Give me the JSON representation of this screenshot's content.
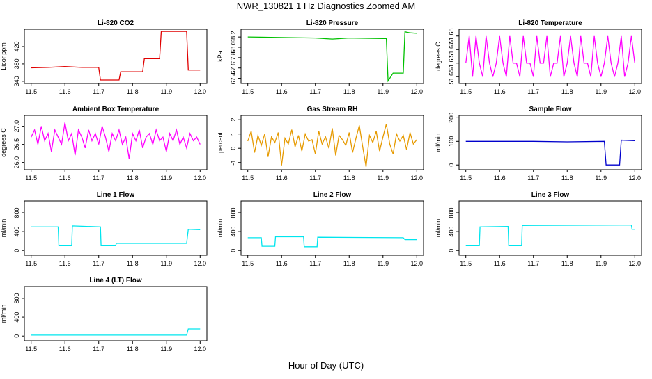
{
  "title": "NWR_130821  1 Hz Diagnostics Zoomed AM",
  "xlabel": "Hour of Day (UTC)",
  "chart_data": [
    {
      "type": "line",
      "title": "Li-820 CO2",
      "ylabel": "Licor ppm",
      "color": "#e00000",
      "x": [
        11.5,
        11.55,
        11.6,
        11.65,
        11.7,
        11.705,
        11.76,
        11.765,
        11.83,
        11.835,
        11.88,
        11.885,
        11.96,
        11.965,
        12.0
      ],
      "values": [
        371,
        372,
        374,
        372,
        372,
        343,
        343,
        362,
        362,
        392,
        392,
        455,
        455,
        366,
        366
      ],
      "xlim": [
        11.48,
        12.02
      ],
      "xticks": [
        11.5,
        11.6,
        11.7,
        11.8,
        11.9,
        {
          "value": 12,
          "label": "12.0"
        }
      ],
      "ylim": [
        335,
        460
      ],
      "yticks": [
        340,
        380,
        420
      ]
    },
    {
      "type": "line",
      "title": "Li-820 Pressure",
      "ylabel": "kPa",
      "color": "#00c000",
      "x": [
        11.5,
        11.6,
        11.7,
        11.75,
        11.8,
        11.9,
        11.91,
        11.915,
        11.93,
        11.96,
        11.965,
        11.98,
        12.0
      ],
      "values": [
        68.2,
        68.19,
        68.18,
        68.16,
        68.18,
        68.17,
        68.17,
        67.35,
        67.5,
        67.5,
        68.3,
        68.28,
        68.27
      ],
      "xlim": [
        11.48,
        12.02
      ],
      "xticks": [
        11.5,
        11.6,
        11.7,
        11.8,
        11.9,
        {
          "value": 12,
          "label": "12.0"
        }
      ],
      "ylim": [
        67.3,
        68.35
      ],
      "yticks": [
        67.4,
        67.6,
        67.8,
        {
          "value": 68,
          "label": "68.0"
        },
        68.2
      ]
    },
    {
      "type": "line",
      "title": "Li-820 Temperature",
      "ylabel": "degrees C",
      "color": "#ff00ff",
      "x": [
        11.5,
        11.51,
        11.52,
        11.53,
        11.54,
        11.55,
        11.56,
        11.57,
        11.58,
        11.59,
        11.6,
        11.61,
        11.62,
        11.63,
        11.64,
        11.65,
        11.66,
        11.67,
        11.68,
        11.69,
        11.7,
        11.71,
        11.72,
        11.73,
        11.74,
        11.75,
        11.76,
        11.77,
        11.78,
        11.79,
        11.8,
        11.81,
        11.82,
        11.83,
        11.84,
        11.85,
        11.86,
        11.87,
        11.88,
        11.89,
        11.9,
        11.91,
        11.92,
        11.93,
        11.94,
        11.95,
        11.96,
        11.97,
        11.98,
        11.99,
        12.0
      ],
      "values": [
        51.66,
        51.68,
        51.65,
        51.68,
        51.66,
        51.65,
        51.68,
        51.66,
        51.65,
        51.66,
        51.68,
        51.66,
        51.65,
        51.68,
        51.66,
        51.66,
        51.65,
        51.68,
        51.66,
        51.66,
        51.65,
        51.68,
        51.66,
        51.66,
        51.68,
        51.65,
        51.66,
        51.66,
        51.68,
        51.65,
        51.66,
        51.68,
        51.66,
        51.65,
        51.68,
        51.66,
        51.66,
        51.65,
        51.68,
        51.66,
        51.65,
        51.66,
        51.68,
        51.66,
        51.65,
        51.66,
        51.68,
        51.65,
        51.66,
        51.68,
        51.66
      ],
      "xlim": [
        11.48,
        12.02
      ],
      "xticks": [
        11.5,
        11.6,
        11.7,
        11.8,
        11.9,
        {
          "value": 12,
          "label": "12.0"
        }
      ],
      "ylim": [
        51.645,
        51.685
      ],
      "yticks": [
        51.65,
        51.66,
        51.67,
        51.68
      ]
    },
    {
      "type": "line",
      "title": "Ambient Box Temperature",
      "ylabel": "degrees C",
      "color": "#ff00ff",
      "x": [
        11.5,
        11.51,
        11.52,
        11.53,
        11.54,
        11.55,
        11.56,
        11.57,
        11.58,
        11.59,
        11.6,
        11.61,
        11.62,
        11.63,
        11.64,
        11.65,
        11.66,
        11.67,
        11.68,
        11.69,
        11.7,
        11.71,
        11.72,
        11.73,
        11.74,
        11.75,
        11.76,
        11.77,
        11.78,
        11.79,
        11.8,
        11.81,
        11.82,
        11.83,
        11.84,
        11.85,
        11.86,
        11.87,
        11.88,
        11.89,
        11.9,
        11.91,
        11.92,
        11.93,
        11.94,
        11.95,
        11.96,
        11.97,
        11.98,
        11.99,
        12.0
      ],
      "values": [
        26.7,
        26.9,
        26.5,
        27.0,
        26.6,
        26.8,
        26.3,
        26.9,
        26.7,
        26.5,
        27.1,
        26.6,
        26.8,
        26.2,
        26.9,
        26.7,
        26.4,
        26.9,
        26.6,
        26.8,
        26.5,
        27.0,
        26.7,
        26.3,
        26.8,
        26.6,
        26.9,
        26.5,
        26.7,
        26.1,
        26.8,
        26.6,
        26.9,
        26.4,
        26.7,
        26.8,
        26.5,
        26.9,
        26.6,
        26.7,
        26.3,
        26.8,
        26.6,
        26.9,
        26.5,
        26.7,
        26.4,
        26.8,
        26.6,
        26.7,
        26.5
      ],
      "xlim": [
        11.48,
        12.02
      ],
      "xticks": [
        11.5,
        11.6,
        11.7,
        11.8,
        11.9,
        {
          "value": 12,
          "label": "12.0"
        }
      ],
      "ylim": [
        25.8,
        27.3
      ],
      "yticks": [
        {
          "value": 26,
          "label": "26.0"
        },
        26.5,
        {
          "value": 27,
          "label": "27.0"
        }
      ]
    },
    {
      "type": "line",
      "title": "Gas Stream RH",
      "ylabel": "percent",
      "color": "#e69a00",
      "x": [
        11.5,
        11.51,
        11.52,
        11.53,
        11.54,
        11.55,
        11.56,
        11.57,
        11.58,
        11.59,
        11.6,
        11.61,
        11.62,
        11.63,
        11.64,
        11.65,
        11.66,
        11.67,
        11.68,
        11.69,
        11.7,
        11.71,
        11.72,
        11.73,
        11.74,
        11.75,
        11.76,
        11.77,
        11.78,
        11.79,
        11.8,
        11.81,
        11.82,
        11.83,
        11.84,
        11.85,
        11.86,
        11.87,
        11.88,
        11.89,
        11.9,
        11.91,
        11.92,
        11.93,
        11.94,
        11.95,
        11.96,
        11.97,
        11.98,
        11.99,
        12.0
      ],
      "values": [
        0.5,
        1.2,
        -0.3,
        0.9,
        0.2,
        1.0,
        -0.6,
        0.8,
        0.4,
        1.1,
        -1.2,
        0.7,
        0.3,
        1.3,
        0.1,
        0.9,
        -0.2,
        1.0,
        0.5,
        0.6,
        -0.4,
        1.2,
        0.3,
        0.8,
        0.0,
        1.4,
        -0.5,
        0.9,
        0.6,
        0.2,
        1.1,
        -0.3,
        0.7,
        1.6,
        0.1,
        -1.3,
        0.9,
        0.4,
        1.2,
        -0.2,
        0.8,
        1.7,
        0.3,
        -0.4,
        1.0,
        0.5,
        0.9,
        -0.1,
        1.1,
        0.3,
        0.6
      ],
      "xlim": [
        11.48,
        12.02
      ],
      "xticks": [
        11.5,
        11.6,
        11.7,
        11.8,
        11.9,
        {
          "value": 12,
          "label": "12.0"
        }
      ],
      "ylim": [
        -1.5,
        2.3
      ],
      "yticks": [
        -1,
        0,
        1,
        2
      ]
    },
    {
      "type": "line",
      "title": "Sample Flow",
      "ylabel": "ml/min",
      "color": "#0000cc",
      "x": [
        11.5,
        11.7,
        11.8,
        11.91,
        11.915,
        11.955,
        11.96,
        12.0
      ],
      "values": [
        100,
        100,
        98,
        100,
        0,
        0,
        105,
        103
      ],
      "xlim": [
        11.48,
        12.02
      ],
      "xticks": [
        11.5,
        11.6,
        11.7,
        11.8,
        11.9,
        {
          "value": 12,
          "label": "12.0"
        }
      ],
      "ylim": [
        -20,
        210
      ],
      "yticks": [
        0,
        100,
        200
      ]
    },
    {
      "type": "line",
      "title": "Line 1 Flow",
      "ylabel": "ml/min",
      "color": "#00e5ee",
      "x": [
        11.5,
        11.58,
        11.582,
        11.62,
        11.622,
        11.705,
        11.707,
        11.75,
        11.752,
        11.96,
        11.965,
        12.0
      ],
      "values": [
        500,
        500,
        100,
        100,
        520,
        500,
        100,
        100,
        150,
        150,
        450,
        440
      ],
      "xlim": [
        11.48,
        12.02
      ],
      "xticks": [
        11.5,
        11.6,
        11.7,
        11.8,
        11.9,
        {
          "value": 12,
          "label": "12.0"
        }
      ],
      "ylim": [
        -100,
        1050
      ],
      "yticks": [
        0,
        400,
        800
      ]
    },
    {
      "type": "line",
      "title": "Line 2 Flow",
      "ylabel": "ml/min",
      "color": "#00e5ee",
      "x": [
        11.5,
        11.54,
        11.542,
        11.58,
        11.582,
        11.665,
        11.667,
        11.705,
        11.707,
        11.96,
        11.965,
        12.0
      ],
      "values": [
        270,
        270,
        90,
        90,
        290,
        290,
        80,
        80,
        280,
        270,
        230,
        230
      ],
      "xlim": [
        11.48,
        12.02
      ],
      "xticks": [
        11.5,
        11.6,
        11.7,
        11.8,
        11.9,
        {
          "value": 12,
          "label": "12.0"
        }
      ],
      "ylim": [
        -100,
        1050
      ],
      "yticks": [
        0,
        400,
        800
      ]
    },
    {
      "type": "line",
      "title": "Line 3 Flow",
      "ylabel": "ml/min",
      "color": "#00e5ee",
      "x": [
        11.5,
        11.54,
        11.542,
        11.625,
        11.627,
        11.665,
        11.667,
        11.99,
        11.992,
        12.0
      ],
      "values": [
        100,
        100,
        500,
        510,
        100,
        100,
        530,
        540,
        450,
        450
      ],
      "xlim": [
        11.48,
        12.02
      ],
      "xticks": [
        11.5,
        11.6,
        11.7,
        11.8,
        11.9,
        {
          "value": 12,
          "label": "12.0"
        }
      ],
      "ylim": [
        -100,
        1050
      ],
      "yticks": [
        0,
        400,
        800
      ]
    },
    {
      "type": "line",
      "title": "Line 4 (LT) Flow",
      "ylabel": "ml/min",
      "color": "#00e5ee",
      "x": [
        11.5,
        11.96,
        11.965,
        12.0
      ],
      "values": [
        20,
        20,
        150,
        150
      ],
      "xlim": [
        11.48,
        12.02
      ],
      "xticks": [
        11.5,
        11.6,
        11.7,
        11.8,
        11.9,
        {
          "value": 12,
          "label": "12.0"
        }
      ],
      "ylim": [
        -100,
        1050
      ],
      "yticks": [
        0,
        400,
        800
      ]
    }
  ]
}
